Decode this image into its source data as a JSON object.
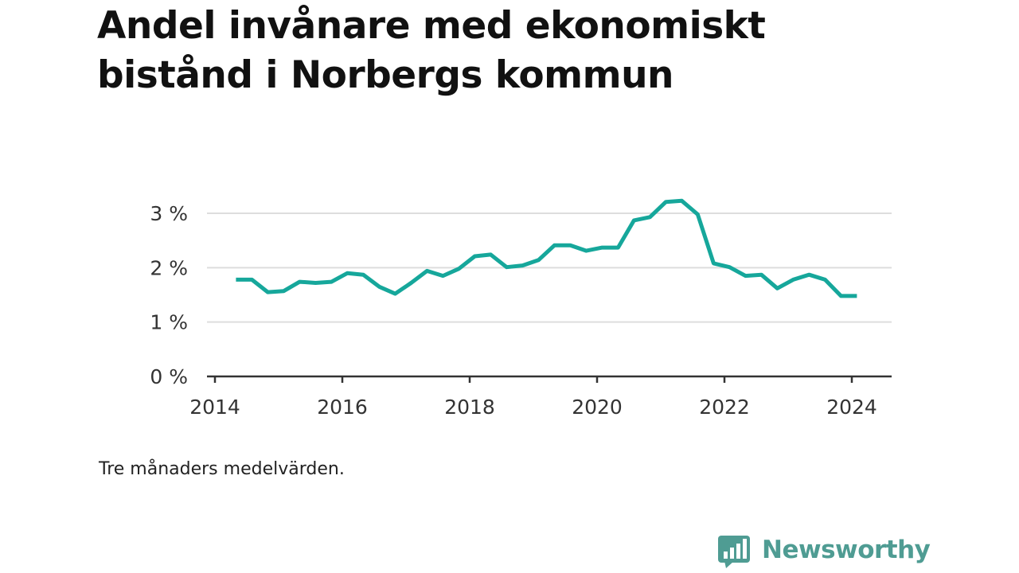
{
  "title": "Andel invånare med ekonomiskt bistånd i Norbergs kommun",
  "note": "Tre månaders medelvärden.",
  "brand": {
    "name": "Newsworthy",
    "icon": "bar-chart-speech-bubble-icon",
    "color": "#4f9c93"
  },
  "chart_data": {
    "type": "line",
    "title": "Andel invånare med ekonomiskt bistånd i Norbergs kommun",
    "xlabel": "",
    "ylabel": "",
    "x_ticks": [
      "2014",
      "2016",
      "2018",
      "2020",
      "2022",
      "2024"
    ],
    "y_ticks": [
      "0 %",
      "1 %",
      "2 %",
      "3 %"
    ],
    "xlim": [
      2014,
      2024.6
    ],
    "ylim": [
      0,
      3
    ],
    "grid": true,
    "line_color": "#16a79b",
    "series": [
      {
        "x": [
          2014.33,
          2014.58,
          2014.83,
          2015.08,
          2015.33,
          2015.58,
          2015.83,
          2016.08,
          2016.33,
          2016.58,
          2016.83,
          2017.08,
          2017.33,
          2017.58,
          2017.83,
          2018.08,
          2018.33,
          2018.58,
          2018.83,
          2019.08,
          2019.33,
          2019.58,
          2019.83,
          2020.08,
          2020.33,
          2020.58,
          2020.83,
          2021.08,
          2021.33,
          2021.58,
          2021.83,
          2022.08,
          2022.33,
          2022.58,
          2022.83,
          2023.08,
          2023.33,
          2023.58,
          2023.83,
          2024.08
        ],
        "y": [
          1.78,
          1.78,
          1.55,
          1.57,
          1.74,
          1.72,
          1.74,
          1.9,
          1.87,
          1.65,
          1.52,
          1.72,
          1.94,
          1.85,
          1.98,
          2.21,
          2.24,
          2.01,
          2.04,
          2.14,
          2.41,
          2.41,
          2.31,
          2.37,
          2.37,
          2.87,
          2.93,
          3.21,
          3.23,
          2.98,
          2.08,
          2.01,
          1.85,
          1.87,
          1.62,
          1.78,
          1.87,
          1.78,
          1.48,
          1.48
        ]
      }
    ]
  }
}
